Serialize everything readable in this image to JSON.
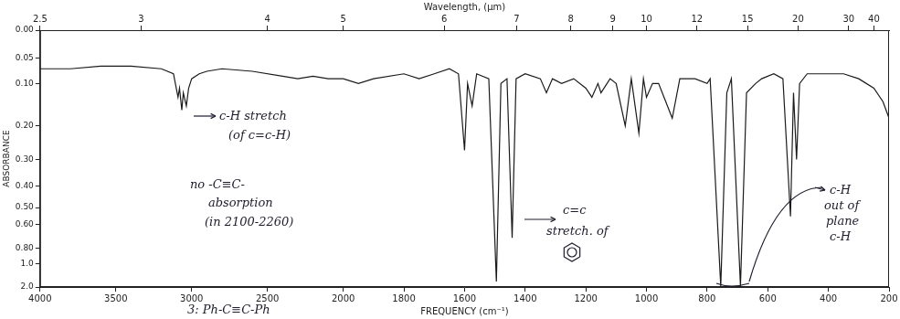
{
  "chart_data": {
    "type": "line",
    "xlabel": "FREQUENCY (cm⁻¹)",
    "ylabel": "ABSORBANCE",
    "x2label": "Wavelength, (μm)",
    "color": "#1a1a1a",
    "grid": false,
    "xlim": [
      4000,
      200
    ],
    "xticks": [
      4000,
      3500,
      3000,
      2500,
      2000,
      1800,
      1600,
      1400,
      1200,
      1000,
      800,
      600,
      400,
      200
    ],
    "x2lim": [
      2.5,
      50
    ],
    "x2ticks": [
      2.5,
      3,
      4,
      5,
      6,
      7,
      8,
      9,
      10,
      12,
      15,
      20,
      30,
      40
    ],
    "ylim": [
      0,
      2
    ],
    "yticks": [
      {
        "value": 0,
        "label": "0.00"
      },
      0.05,
      {
        "value": 0.1,
        "label": "0.10"
      },
      {
        "value": 0.2,
        "label": "0.20"
      },
      {
        "value": 0.3,
        "label": "0.30"
      },
      {
        "value": 0.4,
        "label": "0.40"
      },
      {
        "value": 0.5,
        "label": "0.50"
      },
      {
        "value": 0.6,
        "label": "0.60"
      },
      {
        "value": 0.8,
        "label": "0.80"
      },
      {
        "value": 1,
        "label": "1.0"
      },
      {
        "value": 2,
        "label": "2.0"
      }
    ],
    "x": [
      4000,
      3800,
      3600,
      3400,
      3200,
      3120,
      3090,
      3080,
      3065,
      3055,
      3035,
      3020,
      3000,
      2950,
      2900,
      2800,
      2600,
      2400,
      2300,
      2200,
      2100,
      2000,
      1950,
      1900,
      1800,
      1750,
      1700,
      1650,
      1620,
      1600,
      1590,
      1575,
      1560,
      1520,
      1495,
      1480,
      1460,
      1443,
      1430,
      1400,
      1350,
      1330,
      1310,
      1280,
      1240,
      1200,
      1180,
      1160,
      1150,
      1120,
      1100,
      1070,
      1050,
      1025,
      1010,
      1000,
      980,
      960,
      915,
      890,
      840,
      800,
      790,
      755,
      735,
      720,
      690,
      670,
      640,
      620,
      580,
      550,
      525,
      515,
      505,
      495,
      470,
      440,
      400,
      350,
      300,
      250,
      220,
      200
    ],
    "values": [
      0.07,
      0.07,
      0.065,
      0.065,
      0.07,
      0.08,
      0.13,
      0.11,
      0.16,
      0.12,
      0.15,
      0.11,
      0.09,
      0.08,
      0.075,
      0.07,
      0.075,
      0.085,
      0.09,
      0.085,
      0.09,
      0.09,
      0.1,
      0.09,
      0.08,
      0.09,
      0.08,
      0.07,
      0.08,
      0.27,
      0.1,
      0.15,
      0.08,
      0.09,
      1.5,
      0.1,
      0.09,
      0.7,
      0.09,
      0.08,
      0.09,
      0.12,
      0.09,
      0.1,
      0.09,
      0.11,
      0.13,
      0.1,
      0.12,
      0.09,
      0.1,
      0.2,
      0.09,
      0.22,
      0.09,
      0.13,
      0.1,
      0.1,
      0.18,
      0.09,
      0.09,
      0.1,
      0.09,
      1.9,
      0.12,
      0.09,
      1.9,
      0.12,
      0.1,
      0.09,
      0.08,
      0.09,
      0.55,
      0.12,
      0.3,
      0.1,
      0.08,
      0.08,
      0.08,
      0.08,
      0.09,
      0.11,
      0.14,
      0.18
    ],
    "annotations": [
      [
        "c-H stretch",
        "(of c=c-H)"
      ],
      [
        "no -C≡C-",
        "absorption",
        "(in 2100-2260)"
      ],
      [
        "c=c",
        "stretch. of"
      ],
      [
        "c-H",
        "out of",
        "plane",
        "c-H"
      ],
      [
        "3: Ph-C≡C-Ph"
      ]
    ]
  }
}
